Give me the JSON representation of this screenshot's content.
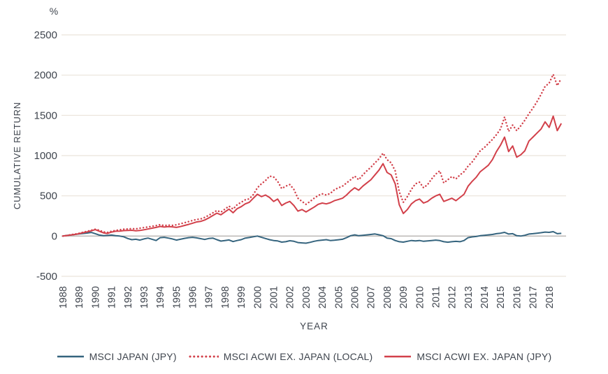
{
  "figure": {
    "unit_label": "%",
    "y_axis_title": "CUMULATIVE RETURN",
    "x_axis_title": "YEAR"
  },
  "colors": {
    "background": "#ffffff",
    "text": "#3f454e",
    "gridline": "#eae3da",
    "zero_line": "#b7b3af"
  },
  "chart_data": {
    "type": "line",
    "title": "",
    "xlabel": "YEAR",
    "ylabel": "CUMULATIVE RETURN",
    "unit": "%",
    "grid": "horizontal",
    "legend_position": "bottom",
    "ylim": [
      -500,
      2500
    ],
    "yticks": [
      2500,
      2000,
      1500,
      1000,
      500,
      0,
      -500
    ],
    "x_range": [
      1988,
      2019
    ],
    "x_start_year": 1988,
    "x_step_years": 0.25,
    "xtick_labels": [
      "1988",
      "1989",
      "1990",
      "1991",
      "1992",
      "1993",
      "1994",
      "1995",
      "1996",
      "1997",
      "1998",
      "1999",
      "2000",
      "2001",
      "2002",
      "2003",
      "2004",
      "2005",
      "2006",
      "2007",
      "2008",
      "2009",
      "2010",
      "2011",
      "2012",
      "2013",
      "2014",
      "2015",
      "2016",
      "2017",
      "2018"
    ],
    "series": [
      {
        "name": "MSCI JAPAN (JPY)",
        "style": "solid",
        "color": "#35647e",
        "values": [
          0,
          8,
          14,
          20,
          26,
          32,
          38,
          45,
          30,
          12,
          5,
          8,
          12,
          5,
          0,
          -8,
          -30,
          -45,
          -40,
          -50,
          -35,
          -25,
          -40,
          -55,
          -20,
          -15,
          -25,
          -35,
          -50,
          -40,
          -28,
          -20,
          -15,
          -22,
          -32,
          -42,
          -30,
          -25,
          -45,
          -62,
          -55,
          -48,
          -68,
          -55,
          -45,
          -25,
          -18,
          -8,
          0,
          -15,
          -30,
          -45,
          -55,
          -60,
          -75,
          -70,
          -58,
          -65,
          -80,
          -85,
          -88,
          -78,
          -65,
          -55,
          -50,
          -45,
          -55,
          -52,
          -46,
          -40,
          -20,
          5,
          15,
          5,
          10,
          15,
          20,
          26,
          16,
          5,
          -25,
          -32,
          -55,
          -70,
          -75,
          -65,
          -55,
          -60,
          -55,
          -65,
          -60,
          -55,
          -50,
          -56,
          -70,
          -76,
          -70,
          -66,
          -70,
          -55,
          -20,
          -10,
          -5,
          5,
          10,
          15,
          20,
          30,
          36,
          46,
          25,
          30,
          5,
          0,
          10,
          25,
          30,
          36,
          42,
          50,
          46,
          55,
          30,
          34
        ]
      },
      {
        "name": "MSCI ACWI EX. JAPAN (LOCAL)",
        "style": "dotted",
        "color": "#d2404a",
        "values": [
          0,
          8,
          18,
          25,
          35,
          48,
          60,
          72,
          85,
          72,
          52,
          45,
          60,
          70,
          78,
          85,
          88,
          93,
          90,
          98,
          105,
          113,
          122,
          130,
          142,
          130,
          136,
          133,
          140,
          153,
          166,
          180,
          194,
          207,
          213,
          232,
          258,
          288,
          318,
          298,
          335,
          372,
          335,
          390,
          420,
          450,
          462,
          515,
          600,
          650,
          690,
          745,
          735,
          680,
          590,
          620,
          640,
          580,
          470,
          430,
          395,
          430,
          470,
          505,
          525,
          510,
          530,
          575,
          600,
          620,
          660,
          700,
          745,
          700,
          760,
          810,
          855,
          910,
          960,
          1030,
          950,
          910,
          810,
          550,
          420,
          490,
          580,
          650,
          670,
          600,
          640,
          710,
          770,
          810,
          660,
          700,
          740,
          710,
          760,
          800,
          870,
          920,
          990,
          1060,
          1100,
          1150,
          1200,
          1260,
          1330,
          1480,
          1300,
          1380,
          1310,
          1370,
          1440,
          1520,
          1590,
          1670,
          1760,
          1860,
          1900,
          2010,
          1870,
          1960
        ]
      },
      {
        "name": "MSCI ACWI EX. JAPAN (JPY)",
        "style": "solid",
        "color": "#d2404a",
        "values": [
          0,
          6,
          14,
          20,
          30,
          42,
          52,
          65,
          80,
          60,
          40,
          32,
          50,
          60,
          62,
          68,
          70,
          72,
          65,
          70,
          78,
          88,
          98,
          108,
          120,
          112,
          118,
          115,
          108,
          118,
          132,
          145,
          160,
          175,
          182,
          200,
          225,
          255,
          285,
          265,
          300,
          335,
          290,
          340,
          365,
          400,
          420,
          470,
          520,
          490,
          510,
          480,
          430,
          460,
          380,
          410,
          430,
          380,
          310,
          330,
          300,
          330,
          360,
          395,
          410,
          400,
          415,
          440,
          455,
          470,
          510,
          560,
          600,
          570,
          620,
          660,
          700,
          760,
          820,
          900,
          790,
          760,
          650,
          390,
          280,
          330,
          400,
          440,
          460,
          410,
          430,
          470,
          500,
          520,
          430,
          450,
          470,
          440,
          480,
          520,
          620,
          680,
          730,
          800,
          840,
          880,
          950,
          1050,
          1130,
          1230,
          1050,
          1120,
          980,
          1010,
          1060,
          1180,
          1230,
          1280,
          1330,
          1420,
          1350,
          1490,
          1310,
          1400
        ]
      }
    ]
  }
}
